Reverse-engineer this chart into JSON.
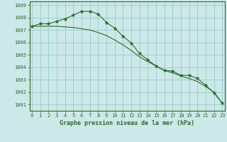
{
  "hours": [
    0,
    1,
    2,
    3,
    4,
    5,
    6,
    7,
    8,
    9,
    10,
    11,
    12,
    13,
    14,
    15,
    16,
    17,
    18,
    19,
    20,
    21,
    22,
    23
  ],
  "line1": [
    1007.3,
    1007.5,
    1007.5,
    1007.7,
    1007.9,
    1008.2,
    1008.5,
    1008.5,
    1008.3,
    1007.6,
    1007.15,
    1006.5,
    1005.95,
    1005.1,
    1004.6,
    1004.1,
    1003.75,
    1003.7,
    1003.35,
    1003.35,
    1003.1,
    1002.55,
    1001.95,
    1001.1
  ],
  "line2": [
    1007.3,
    1007.3,
    1007.3,
    1007.3,
    1007.25,
    1007.2,
    1007.1,
    1007.0,
    1006.8,
    1006.55,
    1006.2,
    1005.8,
    1005.35,
    1004.85,
    1004.45,
    1004.1,
    1003.75,
    1003.55,
    1003.3,
    1003.1,
    1002.85,
    1002.45,
    1002.0,
    1001.1
  ],
  "bg_color": "#cce8e8",
  "grid_color": "#99cccc",
  "line1_color": "#2d6a2d",
  "line2_color": "#2d6a2d",
  "marker_color": "#2d6a2d",
  "ylim": [
    1000.5,
    1009.3
  ],
  "yticks": [
    1001,
    1002,
    1003,
    1004,
    1005,
    1006,
    1007,
    1008,
    1009
  ],
  "xlabel": "Graphe pression niveau de la mer (hPa)",
  "text_color": "#2d6a2d"
}
